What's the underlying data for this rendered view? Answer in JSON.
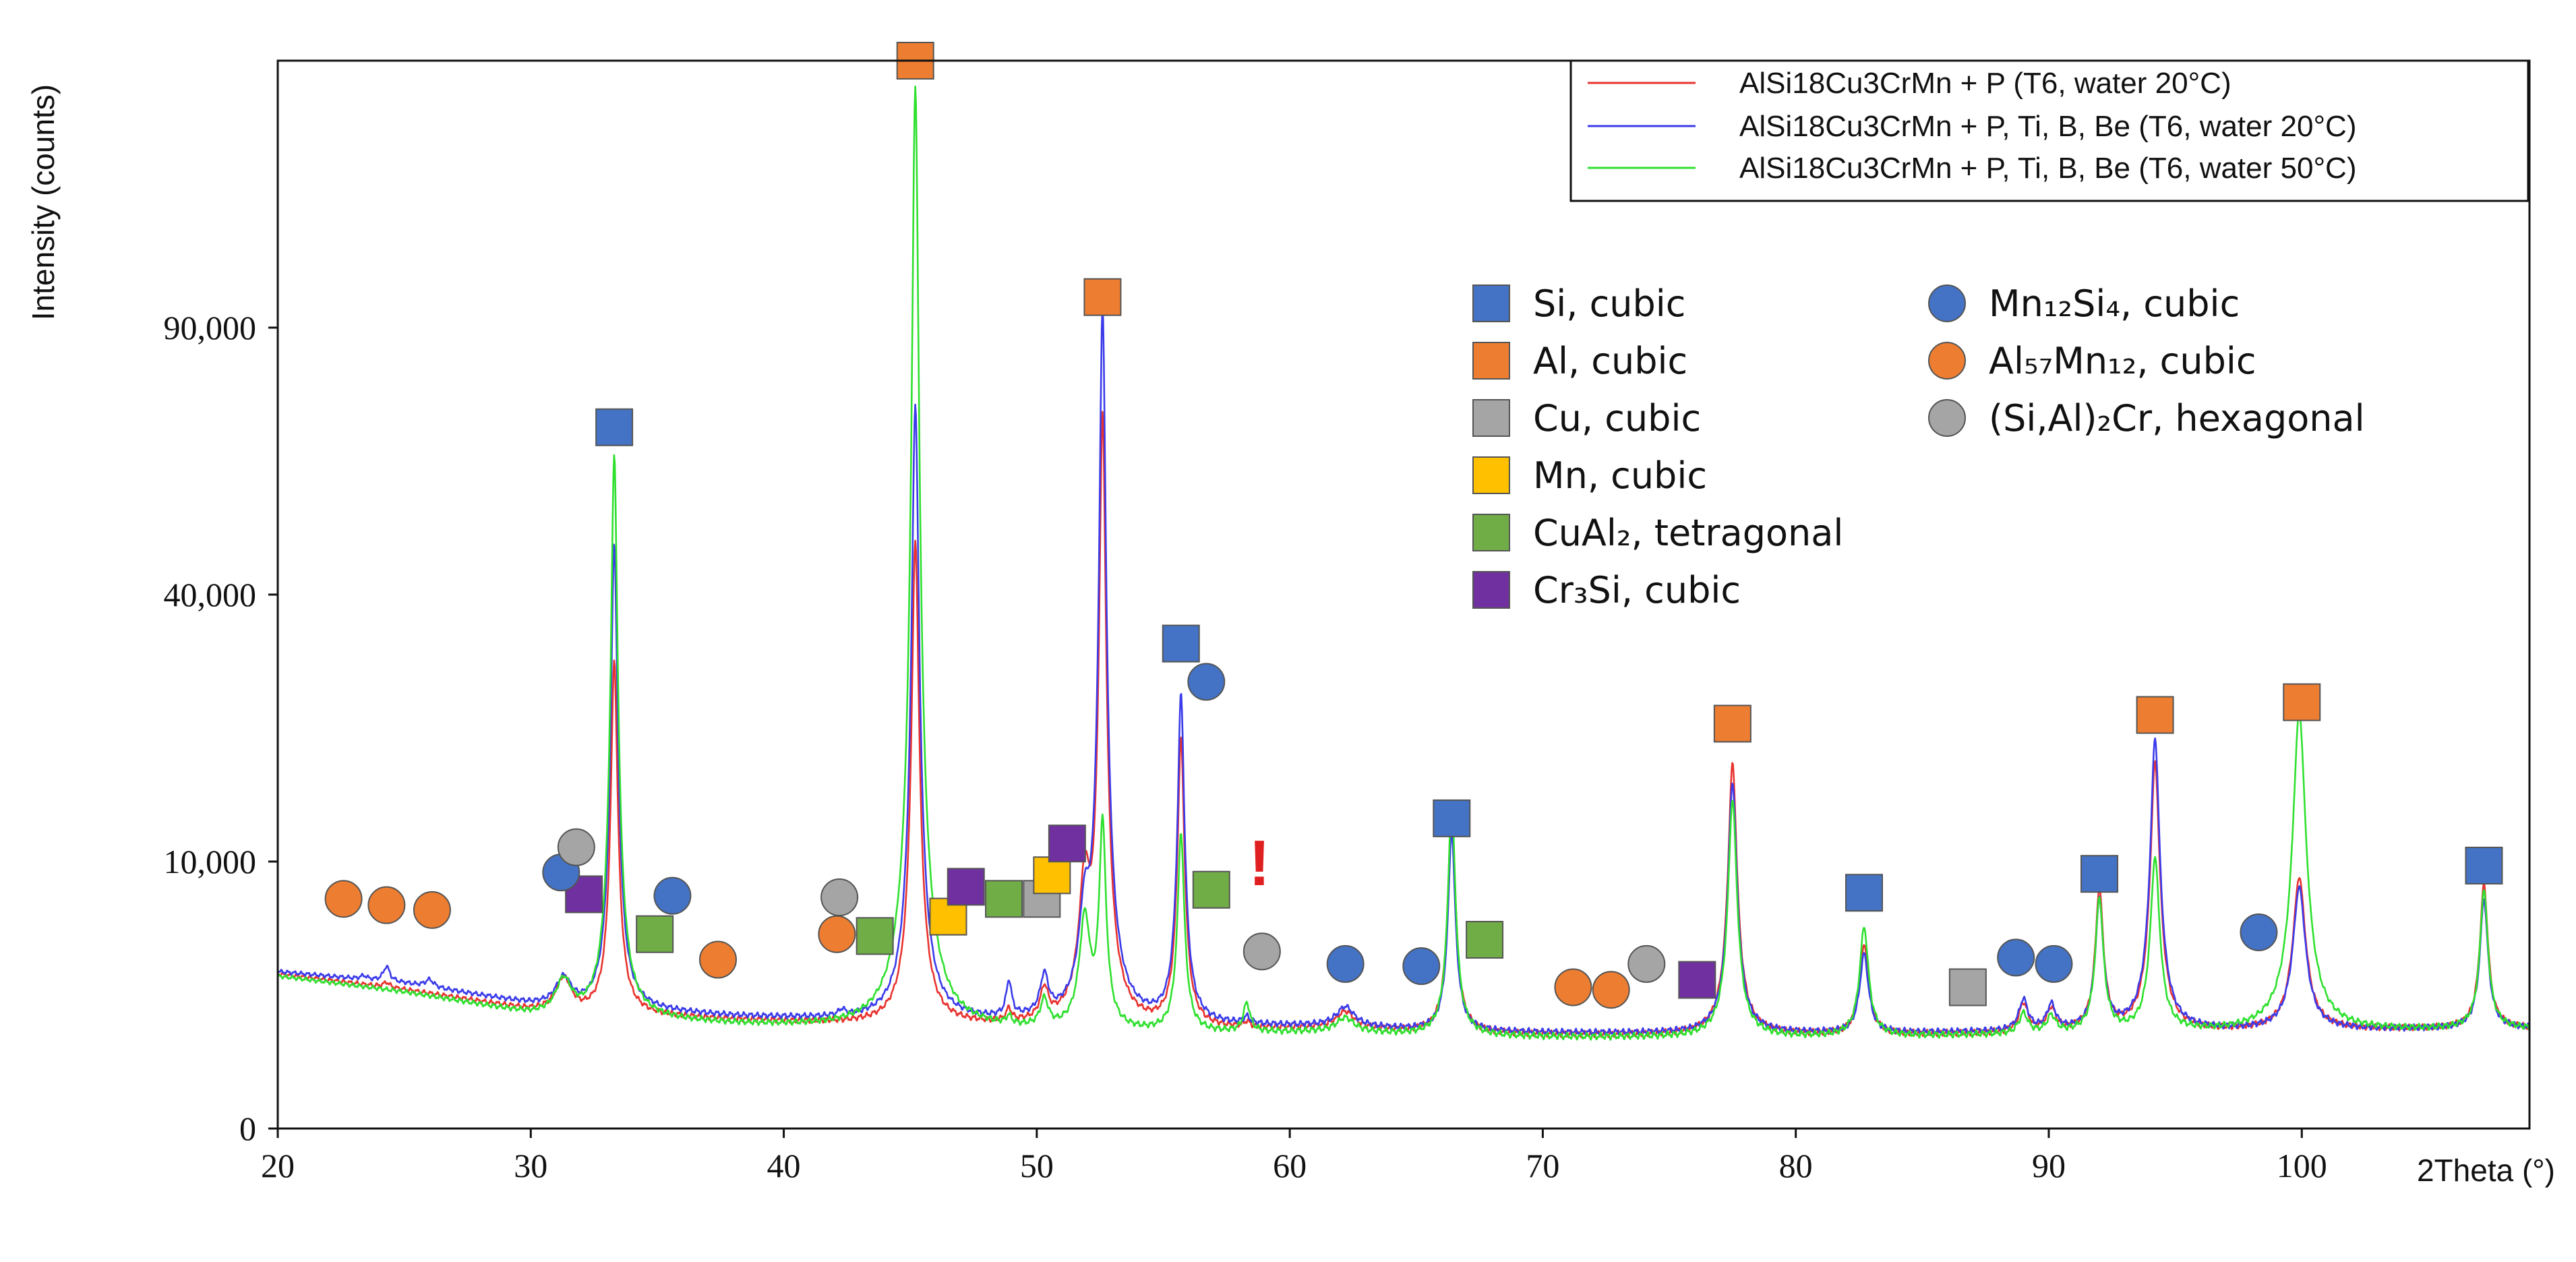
{
  "chart_data": {
    "type": "line",
    "title": "",
    "xlabel": "2Theta (°)",
    "ylabel": "Intensity (counts)",
    "xlim": [
      20,
      109
    ],
    "x_ticks": [
      20,
      30,
      40,
      50,
      60,
      70,
      80,
      90,
      100
    ],
    "x_tick_labels": [
      "20",
      "30",
      "40",
      "50",
      "60",
      "70",
      "80",
      "90",
      "100"
    ],
    "y_scale": "sqrt",
    "y_ticks": [
      0,
      10000,
      40000,
      90000
    ],
    "y_tick_labels": [
      "0",
      "10,000",
      "40,000",
      "90,000"
    ],
    "ylim": [
      0,
      160000
    ],
    "grid": false,
    "legend_position": "top-right",
    "series": [
      {
        "name": "AlSi18Cu3CrMn + P (T6, water 20°C)",
        "color": "#e8332f",
        "baseline": [
          [
            20,
            3350
          ],
          [
            25,
            2700
          ],
          [
            30,
            1950
          ],
          [
            32,
            1800
          ],
          [
            34,
            1800
          ],
          [
            38,
            1650
          ],
          [
            44,
            1500
          ],
          [
            50,
            1450
          ],
          [
            56,
            1350
          ],
          [
            62,
            1400
          ],
          [
            66,
            1250
          ],
          [
            72,
            1220
          ],
          [
            78,
            1220
          ],
          [
            84,
            1230
          ],
          [
            88,
            1260
          ],
          [
            92,
            1300
          ],
          [
            96,
            1320
          ],
          [
            100,
            1350
          ],
          [
            104,
            1380
          ],
          [
            108,
            1400
          ]
        ],
        "peaks": [
          [
            24.3,
            200,
            0.15
          ],
          [
            31.3,
            1300,
            0.35
          ],
          [
            33.3,
            29000,
            0.13
          ],
          [
            45.2,
            47000,
            0.14
          ],
          [
            48.9,
            400,
            0.12
          ],
          [
            50.3,
            1100,
            0.18
          ],
          [
            51.9,
            7000,
            0.22
          ],
          [
            52.6,
            70000,
            0.13
          ],
          [
            55.7,
            20000,
            0.13
          ],
          [
            58.3,
            150,
            0.15
          ],
          [
            62.2,
            500,
            0.4
          ],
          [
            66.4,
            13500,
            0.14
          ],
          [
            77.5,
            17500,
            0.17
          ],
          [
            82.7,
            3500,
            0.18
          ],
          [
            89.0,
            900,
            0.2
          ],
          [
            90.1,
            700,
            0.2
          ],
          [
            92.0,
            6700,
            0.16
          ],
          [
            94.2,
            17500,
            0.18
          ],
          [
            99.9,
            7500,
            0.25
          ],
          [
            107.2,
            7000,
            0.16
          ]
        ]
      },
      {
        "name": "AlSi18Cu3CrMn + P, Ti, B, Be (T6, water 20°C)",
        "color": "#3b3bea",
        "baseline": [
          [
            20,
            3450
          ],
          [
            25,
            2950
          ],
          [
            30,
            2150
          ],
          [
            32,
            1950
          ],
          [
            34,
            1950
          ],
          [
            38,
            1750
          ],
          [
            44,
            1600
          ],
          [
            50,
            1550
          ],
          [
            56,
            1450
          ],
          [
            62,
            1450
          ],
          [
            66,
            1300
          ],
          [
            72,
            1270
          ],
          [
            78,
            1260
          ],
          [
            84,
            1270
          ],
          [
            88,
            1300
          ],
          [
            92,
            1320
          ],
          [
            96,
            1340
          ],
          [
            100,
            1360
          ],
          [
            104,
            1380
          ],
          [
            108,
            1400
          ]
        ],
        "peaks": [
          [
            23.4,
            150,
            0.15
          ],
          [
            24.3,
            650,
            0.15
          ],
          [
            26.0,
            300,
            0.2
          ],
          [
            31.3,
            1100,
            0.35
          ],
          [
            33.3,
            46000,
            0.13
          ],
          [
            42.3,
            200,
            0.15
          ],
          [
            45.2,
            72000,
            0.14
          ],
          [
            48.9,
            1300,
            0.12
          ],
          [
            50.3,
            1500,
            0.18
          ],
          [
            51.9,
            4500,
            0.22
          ],
          [
            52.6,
            93000,
            0.13
          ],
          [
            55.7,
            25000,
            0.13
          ],
          [
            58.3,
            200,
            0.15
          ],
          [
            62.2,
            600,
            0.4
          ],
          [
            66.4,
            11000,
            0.14
          ],
          [
            77.5,
            15500,
            0.17
          ],
          [
            82.7,
            3000,
            0.18
          ],
          [
            89.0,
            1000,
            0.2
          ],
          [
            90.1,
            800,
            0.2
          ],
          [
            92.0,
            6000,
            0.16
          ],
          [
            94.2,
            20000,
            0.18
          ],
          [
            99.9,
            6800,
            0.25
          ],
          [
            107.2,
            6000,
            0.16
          ]
        ]
      },
      {
        "name": "AlSi18Cu3CrMn + P, Ti, B, Be (T6, water 50°C)",
        "color": "#2fe02f",
        "baseline": [
          [
            20,
            3250
          ],
          [
            25,
            2600
          ],
          [
            30,
            1800
          ],
          [
            32,
            1650
          ],
          [
            34,
            1650
          ],
          [
            38,
            1500
          ],
          [
            44,
            1350
          ],
          [
            50,
            1300
          ],
          [
            56,
            1250
          ],
          [
            62,
            1300
          ],
          [
            66,
            1180
          ],
          [
            72,
            1160
          ],
          [
            78,
            1160
          ],
          [
            84,
            1180
          ],
          [
            88,
            1220
          ],
          [
            92,
            1260
          ],
          [
            96,
            1290
          ],
          [
            100,
            1320
          ],
          [
            104,
            1350
          ],
          [
            108,
            1380
          ]
        ],
        "peaks": [
          [
            31.3,
            1300,
            0.35
          ],
          [
            33.3,
            62000,
            0.13
          ],
          [
            45.2,
            151000,
            0.14
          ],
          [
            48.9,
            250,
            0.12
          ],
          [
            50.3,
            900,
            0.18
          ],
          [
            51.9,
            5000,
            0.22
          ],
          [
            52.6,
            12000,
            0.13
          ],
          [
            55.7,
            11000,
            0.13
          ],
          [
            58.3,
            900,
            0.15
          ],
          [
            62.2,
            400,
            0.4
          ],
          [
            66.4,
            14000,
            0.14
          ],
          [
            77.5,
            14000,
            0.17
          ],
          [
            82.7,
            4500,
            0.18
          ],
          [
            89.0,
            600,
            0.2
          ],
          [
            90.1,
            500,
            0.2
          ],
          [
            92.0,
            6200,
            0.16
          ],
          [
            94.2,
            9000,
            0.18
          ],
          [
            99.9,
            23000,
            0.25
          ],
          [
            107.2,
            6600,
            0.16
          ]
        ]
      }
    ],
    "phase_legend": [
      {
        "label": "Si, cubic",
        "shape": "square",
        "color": "#4472c4"
      },
      {
        "label": "Al, cubic",
        "shape": "square",
        "color": "#ed7d31"
      },
      {
        "label": "Cu, cubic",
        "shape": "square",
        "color": "#a5a5a5"
      },
      {
        "label": "Mn, cubic",
        "shape": "square",
        "color": "#ffc000"
      },
      {
        "label": "CuAl₂, tetragonal",
        "shape": "square",
        "color": "#70ad47"
      },
      {
        "label": "Cr₃Si, cubic",
        "shape": "square",
        "color": "#7030a0"
      },
      {
        "label": "Mn₁₂Si₄, cubic",
        "shape": "circle",
        "color": "#4472c4"
      },
      {
        "label": "Al₅₇Mn₁₂, cubic",
        "shape": "circle",
        "color": "#ed7d31"
      },
      {
        "label": "(Si,Al)₂Cr, hexagonal",
        "shape": "circle",
        "color": "#a5a5a5"
      }
    ],
    "phase_markers": [
      {
        "phase": "Si, cubic",
        "x": 33.3,
        "y": 69000
      },
      {
        "phase": "Si, cubic",
        "x": 55.7,
        "y": 33000
      },
      {
        "phase": "Si, cubic",
        "x": 66.4,
        "y": 13500
      },
      {
        "phase": "Si, cubic",
        "x": 82.7,
        "y": 7800
      },
      {
        "phase": "Si, cubic",
        "x": 92.0,
        "y": 9100
      },
      {
        "phase": "Si, cubic",
        "x": 107.2,
        "y": 9700
      },
      {
        "phase": "Al, cubic",
        "x": 45.2,
        "y": 160000
      },
      {
        "phase": "Al, cubic",
        "x": 52.6,
        "y": 97000
      },
      {
        "phase": "Al, cubic",
        "x": 77.5,
        "y": 23000
      },
      {
        "phase": "Al, cubic",
        "x": 94.2,
        "y": 24000
      },
      {
        "phase": "Al, cubic",
        "x": 100.0,
        "y": 25500
      },
      {
        "phase": "Cu, cubic",
        "x": 50.2,
        "y": 7400
      },
      {
        "phase": "Cu, cubic",
        "x": 86.8,
        "y": 2800
      },
      {
        "phase": "Mn, cubic",
        "x": 46.5,
        "y": 6300
      },
      {
        "phase": "Mn, cubic",
        "x": 50.6,
        "y": 9000
      },
      {
        "phase": "CuAl₂, tetragonal",
        "x": 34.9,
        "y": 5300
      },
      {
        "phase": "CuAl₂, tetragonal",
        "x": 43.6,
        "y": 5200
      },
      {
        "phase": "CuAl₂, tetragonal",
        "x": 48.7,
        "y": 7400
      },
      {
        "phase": "CuAl₂, tetragonal",
        "x": 56.9,
        "y": 8000
      },
      {
        "phase": "CuAl₂, tetragonal",
        "x": 67.7,
        "y": 5000
      },
      {
        "phase": "Cr₃Si, cubic",
        "x": 32.1,
        "y": 7700
      },
      {
        "phase": "Cr₃Si, cubic",
        "x": 47.2,
        "y": 8200
      },
      {
        "phase": "Cr₃Si, cubic",
        "x": 51.2,
        "y": 11400
      },
      {
        "phase": "Cr₃Si, cubic",
        "x": 76.1,
        "y": 3100
      },
      {
        "phase": "Mn₁₂Si₄, cubic",
        "x": 31.2,
        "y": 9200
      },
      {
        "phase": "Mn₁₂Si₄, cubic",
        "x": 35.6,
        "y": 7600
      },
      {
        "phase": "Mn₁₂Si₄, cubic",
        "x": 56.7,
        "y": 28000
      },
      {
        "phase": "Mn₁₂Si₄, cubic",
        "x": 62.2,
        "y": 3800
      },
      {
        "phase": "Mn₁₂Si₄, cubic",
        "x": 65.2,
        "y": 3700
      },
      {
        "phase": "Mn₁₂Si₄, cubic",
        "x": 88.7,
        "y": 4100
      },
      {
        "phase": "Mn₁₂Si₄, cubic",
        "x": 90.2,
        "y": 3800
      },
      {
        "phase": "Mn₁₂Si₄, cubic",
        "x": 98.3,
        "y": 5400
      },
      {
        "phase": "Al₅₇Mn₁₂, cubic",
        "x": 22.6,
        "y": 7400
      },
      {
        "phase": "Al₅₇Mn₁₂, cubic",
        "x": 24.3,
        "y": 7000
      },
      {
        "phase": "Al₅₇Mn₁₂, cubic",
        "x": 26.1,
        "y": 6700
      },
      {
        "phase": "Al₅₇Mn₁₂, cubic",
        "x": 37.4,
        "y": 4000
      },
      {
        "phase": "Al₅₇Mn₁₂, cubic",
        "x": 42.1,
        "y": 5300
      },
      {
        "phase": "Al₅₇Mn₁₂, cubic",
        "x": 71.2,
        "y": 2800
      },
      {
        "phase": "Al₅₇Mn₁₂, cubic",
        "x": 72.7,
        "y": 2700
      },
      {
        "phase": "(Si,Al)₂Cr, hexagonal",
        "x": 31.8,
        "y": 11100
      },
      {
        "phase": "(Si,Al)₂Cr, hexagonal",
        "x": 42.2,
        "y": 7500
      },
      {
        "phase": "(Si,Al)₂Cr, hexagonal",
        "x": 58.9,
        "y": 4400
      },
      {
        "phase": "(Si,Al)₂Cr, hexagonal",
        "x": 74.1,
        "y": 3800
      }
    ],
    "annotations": [
      {
        "text": "!",
        "x": 58.8,
        "y": 8300,
        "color": "#e02020"
      }
    ]
  }
}
